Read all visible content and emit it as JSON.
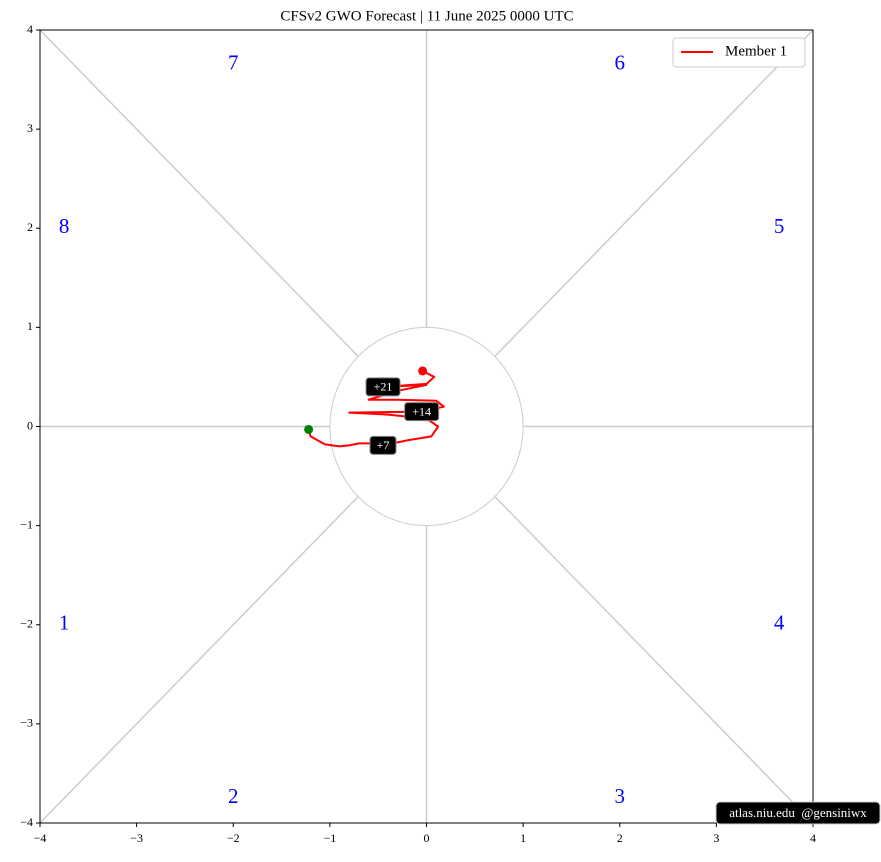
{
  "chart_data": {
    "type": "line",
    "title": "CFSv2 GWO Forecast   |   11  June  2025 0000 UTC",
    "series": [
      {
        "name": "Member 1",
        "color": "#ff0000",
        "x": [
          -1.22,
          -1.2,
          -1.05,
          -0.9,
          -0.8,
          -0.7,
          -0.55,
          -0.45,
          -0.2,
          0.05,
          0.12,
          0.0,
          -0.4,
          -0.8,
          -0.05,
          0.18,
          0.1,
          -0.3,
          -0.6,
          -0.3,
          0.0,
          -0.45,
          0.0,
          0.08,
          -0.04
        ],
        "values": [
          -0.03,
          -0.1,
          -0.18,
          -0.2,
          -0.19,
          -0.17,
          -0.17,
          -0.19,
          -0.14,
          -0.1,
          0.0,
          0.08,
          0.12,
          0.14,
          0.15,
          0.2,
          0.26,
          0.27,
          0.27,
          0.36,
          0.42,
          0.4,
          0.43,
          0.5,
          0.56
        ],
        "point_labels": [
          null,
          null,
          null,
          null,
          null,
          null,
          null,
          "+7",
          null,
          null,
          null,
          null,
          null,
          null,
          "+14",
          null,
          null,
          null,
          null,
          null,
          null,
          "+21",
          null,
          null,
          null
        ]
      }
    ],
    "start_color": "#008000",
    "end_color": "#ff0000",
    "phase_labels": [
      "1",
      "2",
      "3",
      "4",
      "5",
      "6",
      "7",
      "8"
    ],
    "xlim": [
      -4,
      4
    ],
    "ylim": [
      -4,
      4
    ],
    "xticks": [
      {
        "value": -4,
        "label": "−4"
      },
      {
        "value": -3,
        "label": "−3"
      },
      {
        "value": -2,
        "label": "−2"
      },
      {
        "value": -1,
        "label": "−1"
      },
      0,
      1,
      2,
      3,
      4
    ],
    "yticks": [
      {
        "value": -4,
        "label": "−4"
      },
      {
        "value": -3,
        "label": "−3"
      },
      {
        "value": -2,
        "label": "−2"
      },
      {
        "value": -1,
        "label": "−1"
      },
      0,
      1,
      2,
      3,
      4
    ],
    "legend": "upper right",
    "credit": "atlas.niu.edu  @gensiniwx"
  }
}
